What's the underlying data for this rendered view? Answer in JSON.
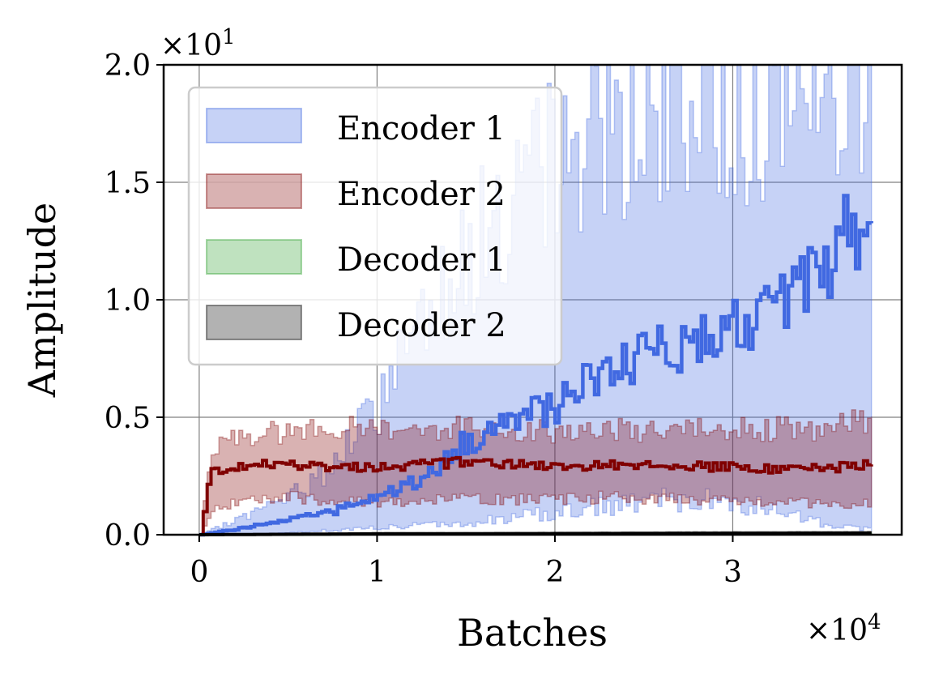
{
  "chart_data": {
    "type": "area",
    "title": "",
    "xlabel": "Batches",
    "ylabel": "Amplitude",
    "x_multiplier": "×10",
    "x_multiplier_exp": "4",
    "y_multiplier": "×10",
    "y_multiplier_exp": "1",
    "xlim": [
      -0.2,
      3.95
    ],
    "ylim": [
      0.0,
      2.0
    ],
    "xticks": [
      0,
      1,
      2,
      3
    ],
    "xtick_labels": [
      "0",
      "1",
      "2",
      "3"
    ],
    "yticks": [
      0.0,
      0.5,
      1.0,
      1.5,
      2.0
    ],
    "ytick_labels": [
      "0.0",
      "0.5",
      "1.0",
      "1.5",
      "2.0"
    ],
    "grid": true,
    "legend_position": "top-left",
    "series": [
      {
        "name": "Encoder 1",
        "color": "#4169e1",
        "band_opacity": 0.3,
        "x": [
          0,
          0.25,
          0.5,
          0.75,
          1.0,
          1.25,
          1.5,
          1.75,
          2.0,
          2.25,
          2.5,
          2.75,
          3.0,
          3.25,
          3.5,
          3.78
        ],
        "mean": [
          0.0,
          0.03,
          0.07,
          0.1,
          0.16,
          0.24,
          0.4,
          0.5,
          0.55,
          0.68,
          0.75,
          0.82,
          0.9,
          0.95,
          1.15,
          1.4
        ],
        "upper": [
          0.0,
          0.08,
          0.16,
          0.3,
          0.55,
          1.0,
          1.2,
          1.4,
          1.6,
          1.8,
          1.75,
          1.8,
          1.85,
          1.9,
          1.95,
          2.0
        ],
        "lower": [
          0.0,
          0.0,
          0.01,
          0.02,
          0.03,
          0.04,
          0.05,
          0.07,
          0.1,
          0.12,
          0.14,
          0.15,
          0.14,
          0.1,
          0.05,
          0.02
        ]
      },
      {
        "name": "Encoder 2",
        "color": "#800000",
        "band_opacity": 0.3,
        "x": [
          0,
          0.06,
          0.25,
          0.5,
          0.75,
          1.0,
          1.25,
          1.5,
          1.75,
          2.0,
          2.25,
          2.5,
          2.75,
          3.0,
          3.25,
          3.5,
          3.78
        ],
        "mean": [
          0.0,
          0.27,
          0.3,
          0.3,
          0.29,
          0.29,
          0.3,
          0.31,
          0.3,
          0.29,
          0.3,
          0.29,
          0.29,
          0.29,
          0.28,
          0.28,
          0.3
        ],
        "upper": [
          0.0,
          0.38,
          0.43,
          0.44,
          0.45,
          0.46,
          0.45,
          0.46,
          0.45,
          0.44,
          0.45,
          0.44,
          0.44,
          0.45,
          0.45,
          0.44,
          0.5
        ],
        "lower": [
          0.0,
          0.1,
          0.15,
          0.16,
          0.15,
          0.14,
          0.15,
          0.15,
          0.15,
          0.15,
          0.16,
          0.15,
          0.15,
          0.15,
          0.14,
          0.13,
          0.14
        ]
      },
      {
        "name": "Decoder 1",
        "color": "#2ca02c",
        "band_opacity": 0.3,
        "x": [
          0,
          1.0,
          2.0,
          3.0,
          3.78
        ],
        "mean": [
          0.0,
          0.002,
          0.003,
          0.004,
          0.004
        ],
        "upper": [
          0.0,
          0.005,
          0.006,
          0.008,
          0.008
        ],
        "lower": [
          0.0,
          0.0,
          0.0,
          0.0,
          0.0
        ]
      },
      {
        "name": "Decoder 2",
        "color": "#000000",
        "band_opacity": 0.3,
        "x": [
          0,
          1.0,
          2.0,
          3.0,
          3.78
        ],
        "mean": [
          0.0,
          0.004,
          0.005,
          0.006,
          0.007
        ],
        "upper": [
          0.0,
          0.008,
          0.01,
          0.013,
          0.014
        ],
        "lower": [
          0.0,
          0.0,
          0.0,
          0.0,
          0.0
        ]
      }
    ]
  }
}
